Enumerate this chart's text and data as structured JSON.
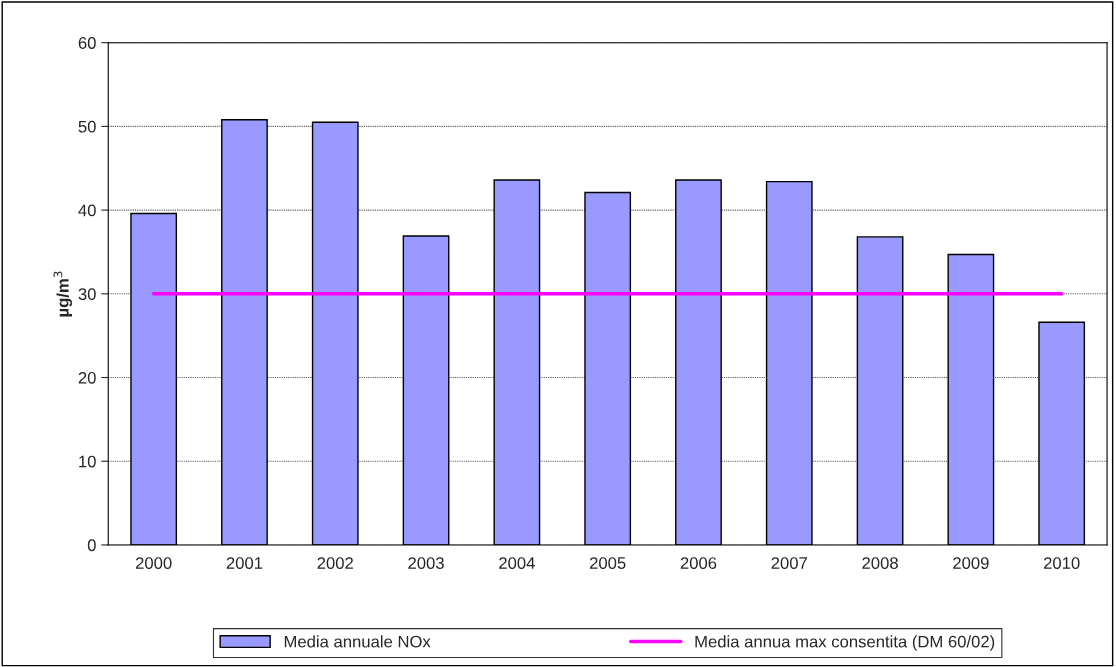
{
  "chart_data": {
    "type": "bar",
    "ylabel": "µg/m$^{3}$",
    "categories": [
      "2000",
      "2001",
      "2002",
      "2003",
      "2004",
      "2005",
      "2006",
      "2007",
      "2008",
      "2009",
      "2010"
    ],
    "series": [
      {
        "name": "Media annuale NOx",
        "color": "#9999ff",
        "values": [
          39.6,
          50.8,
          50.5,
          36.9,
          43.6,
          42.1,
          43.6,
          43.4,
          36.8,
          34.7,
          26.6
        ]
      },
      {
        "name": "Media annua max consentita (DM 60/02)",
        "type": "line",
        "color": "#ff00ff",
        "values": [
          30,
          30,
          30,
          30,
          30,
          30,
          30,
          30,
          30,
          30,
          30
        ]
      }
    ],
    "ylim": [
      0,
      60
    ],
    "yticks": [
      0,
      10,
      20,
      30,
      40,
      50,
      60
    ],
    "grid": "y",
    "legend": "bottom",
    "marker": "none",
    "line_style": "solid"
  }
}
